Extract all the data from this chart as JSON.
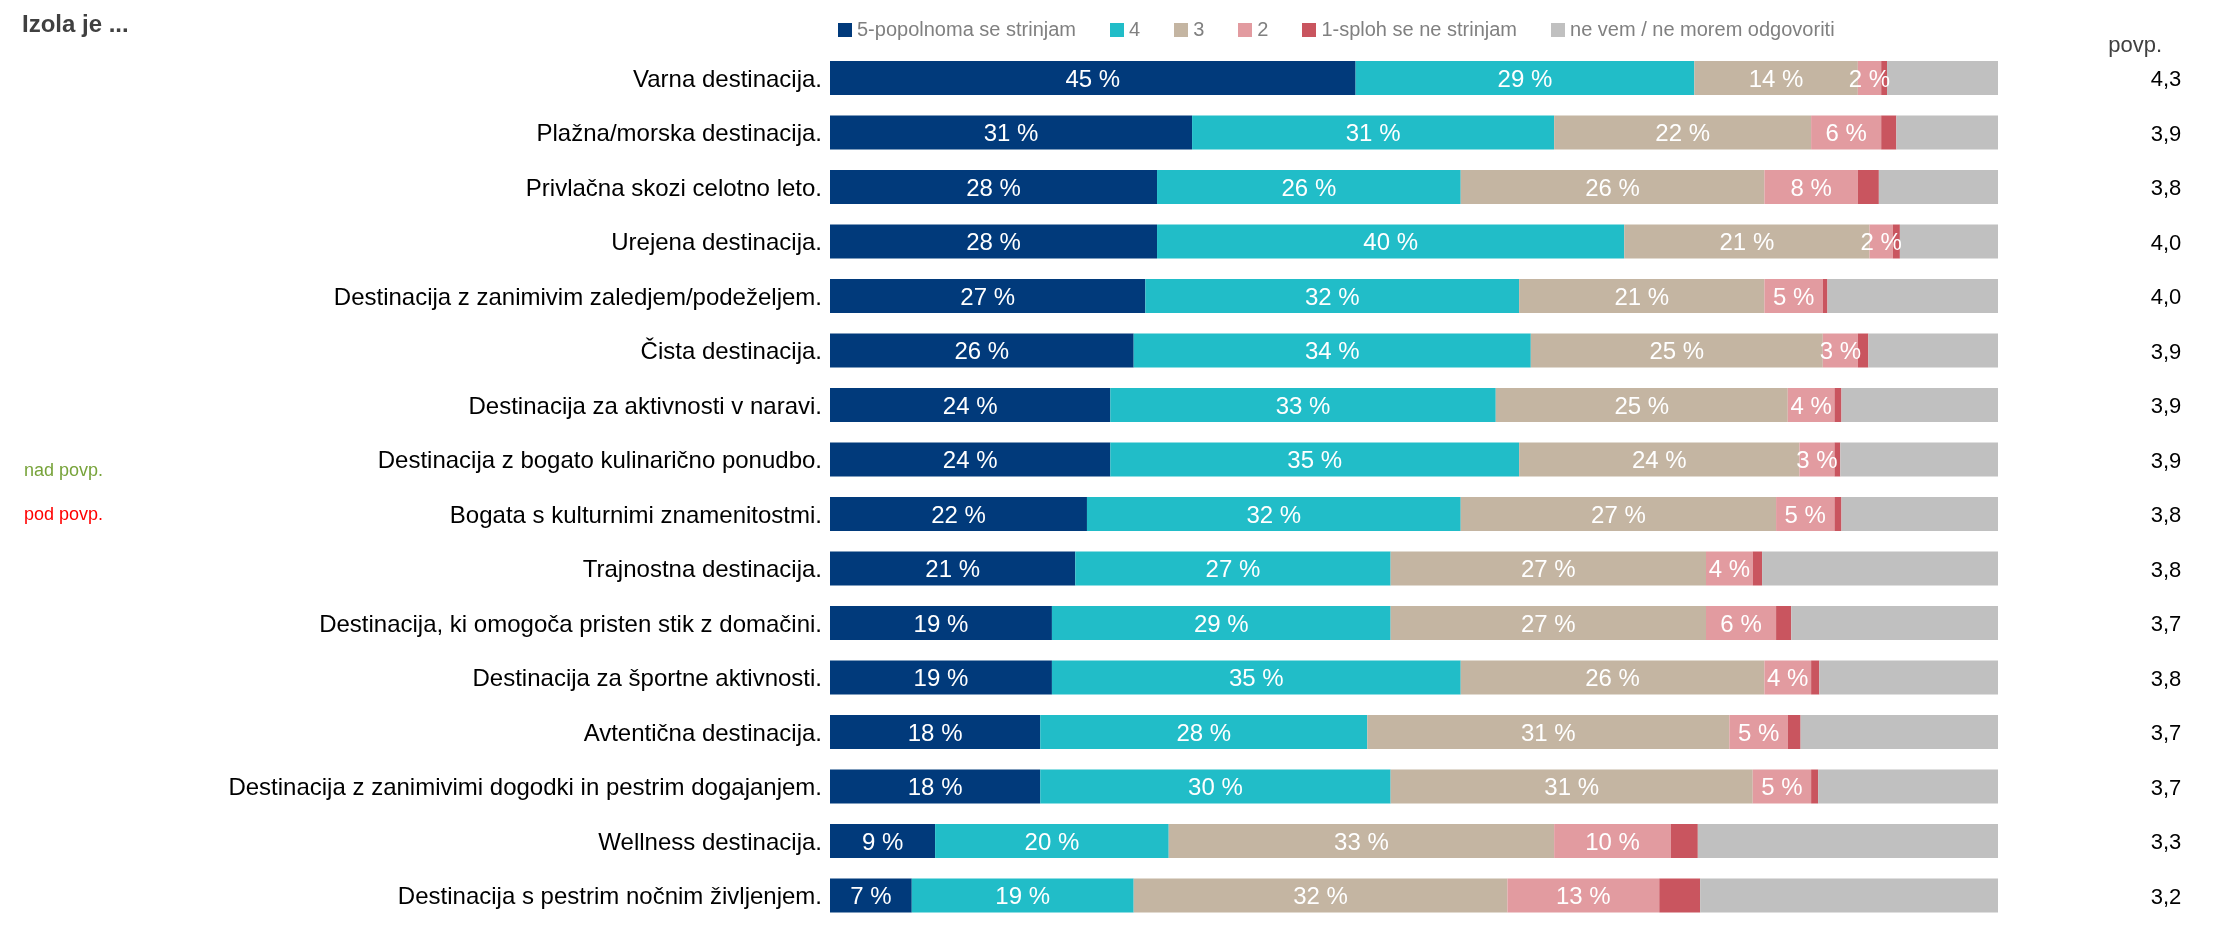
{
  "chart_data": {
    "type": "bar",
    "orientation": "horizontal",
    "stacked": true,
    "title": "Izola je ...",
    "legend": "top",
    "categories": [
      "Varna destinacija.",
      "Plažna/morska destinacija.",
      "Privlačna skozi celotno leto.",
      "Urejena destinacija.",
      "Destinacija z zanimivim zaledjem/podeželjem.",
      "Čista destinacija.",
      "Destinacija za aktivnosti v naravi.",
      "Destinacija z bogato kulinarično ponudbo.",
      "Bogata s kulturnimi znamenitostmi.",
      "Trajnostna destinacija.",
      "Destinacija, ki omogoča pristen stik z domačini.",
      "Destinacija za športne aktivnosti.",
      "Avtentična destinacija.",
      "Destinacija z zanimivimi dogodki in pestrim dogajanjem.",
      "Wellness destinacija.",
      "Destinacija s pestrim nočnim življenjem."
    ],
    "y2_categories": [
      "4,3",
      "3,9",
      "3,8",
      "4,0",
      "4,0",
      "3,9",
      "3,9",
      "3,9",
      "3,8",
      "3,8",
      "3,7",
      "3,8",
      "3,7",
      "3,7",
      "3,3",
      "3,2"
    ],
    "xlim": [
      0,
      100
    ],
    "series": [
      {
        "name": "5-popolnoma se strinjam",
        "color": "#013a7b",
        "values": [
          45,
          31,
          28,
          28,
          27,
          26,
          24,
          24,
          22,
          21,
          19,
          19,
          18,
          18,
          9,
          7
        ],
        "value_labels": [
          "45 %",
          "31 %",
          "28 %",
          "28 %",
          "27 %",
          "26 %",
          "24 %",
          "24 %",
          "22 %",
          "21 %",
          "19 %",
          "19 %",
          "18 %",
          "18 %",
          "9 %",
          "7 %"
        ]
      },
      {
        "name": "4",
        "color": "#21bdc8",
        "values": [
          29,
          31,
          26,
          40,
          32,
          34,
          33,
          35,
          32,
          27,
          29,
          35,
          28,
          30,
          20,
          19
        ],
        "value_labels": [
          "29 %",
          "31 %",
          "26 %",
          "40 %",
          "32 %",
          "34 %",
          "33 %",
          "35 %",
          "32 %",
          "27 %",
          "29 %",
          "35 %",
          "28 %",
          "30 %",
          "20 %",
          "19 %"
        ]
      },
      {
        "name": "3",
        "color": "#c4b5a2",
        "values": [
          14,
          22,
          26,
          21,
          21,
          25,
          25,
          24,
          27,
          27,
          27,
          26,
          31,
          31,
          33,
          32
        ],
        "value_labels": [
          "14 %",
          "22 %",
          "26 %",
          "21 %",
          "21 %",
          "25 %",
          "25 %",
          "24 %",
          "27 %",
          "27 %",
          "27 %",
          "26 %",
          "31 %",
          "31 %",
          "33 %",
          "32 %"
        ]
      },
      {
        "name": "2",
        "color": "#e29ba0",
        "values": [
          2,
          6,
          8,
          2,
          5,
          3,
          4,
          3,
          5,
          4,
          6,
          4,
          5,
          5,
          10,
          13
        ],
        "value_labels": [
          "2 %",
          "6 %",
          "8 %",
          "2 %",
          "5 %",
          "3 %",
          "4 %",
          "3 %",
          "5 %",
          "4 %",
          "6 %",
          "4 %",
          "5 %",
          "5 %",
          "10 %",
          "13 %"
        ]
      },
      {
        "name": "1-sploh se ne strinjam",
        "color": "#c9555f",
        "values": [
          0.5,
          1.3,
          1.8,
          0.6,
          0.4,
          0.9,
          0.6,
          0.5,
          0.6,
          0.8,
          1.3,
          0.7,
          1.1,
          0.6,
          2.3,
          3.5
        ]
      },
      {
        "name": "ne vem / ne morem odgovoriti",
        "color": "#c0c0c0",
        "values": [
          9.5,
          8.7,
          10.2,
          8.4,
          14.6,
          11.1,
          13.4,
          13.5,
          13.4,
          20.2,
          17.7,
          15.3,
          16.9,
          15.4,
          25.7,
          25.5
        ]
      }
    ],
    "annotations": [
      "nad povp.",
      "pod povp.",
      "povp."
    ]
  }
}
